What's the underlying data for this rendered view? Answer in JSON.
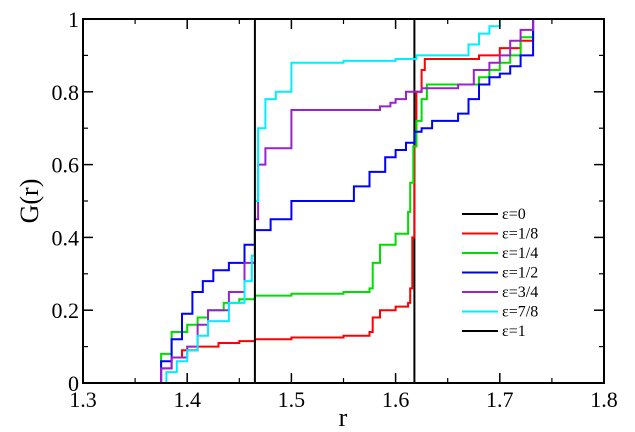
{
  "chart_data": {
    "type": "line",
    "title": "",
    "xlabel": "r",
    "ylabel": "G(r)",
    "xlim": [
      1.3,
      1.8
    ],
    "ylim": [
      0,
      1
    ],
    "x_ticks": [
      1.3,
      1.4,
      1.5,
      1.6,
      1.7,
      1.8
    ],
    "x_tick_labels": [
      "1.3",
      "1.4",
      "1.5",
      "1.6",
      "1.7",
      "1.8"
    ],
    "y_ticks": [
      0,
      0.2,
      0.4,
      0.6,
      0.8,
      1
    ],
    "y_tick_labels": [
      "0",
      "0.2",
      "0.4",
      "0.6",
      "0.8",
      "1"
    ],
    "grid": false,
    "legend_position": "bottom-right",
    "series": [
      {
        "name": "ε=0",
        "color": "#000000",
        "x": [
          1.3,
          1.618,
          1.618,
          1.8
        ],
        "y": [
          0,
          0,
          1,
          1
        ]
      },
      {
        "name": "ε=1/8",
        "color": "#ff0000",
        "x": [
          1.3,
          1.37,
          1.375,
          1.385,
          1.395,
          1.41,
          1.43,
          1.45,
          1.465,
          1.5,
          1.55,
          1.575,
          1.578,
          1.585,
          1.6,
          1.612,
          1.614,
          1.616,
          1.618,
          1.62,
          1.625,
          1.628,
          1.66,
          1.68,
          1.7,
          1.72,
          1.732,
          1.8
        ],
        "y": [
          0,
          0,
          0.04,
          0.07,
          0.09,
          0.1,
          0.11,
          0.115,
          0.12,
          0.125,
          0.13,
          0.14,
          0.18,
          0.2,
          0.21,
          0.22,
          0.26,
          0.4,
          0.65,
          0.8,
          0.86,
          0.89,
          0.89,
          0.9,
          0.92,
          0.94,
          1,
          1
        ]
      },
      {
        "name": "ε=1/4",
        "color": "#00dd00",
        "x": [
          1.3,
          1.365,
          1.375,
          1.385,
          1.4,
          1.41,
          1.42,
          1.435,
          1.45,
          1.465,
          1.5,
          1.55,
          1.575,
          1.578,
          1.585,
          1.6,
          1.612,
          1.614,
          1.617,
          1.62,
          1.625,
          1.63,
          1.66,
          1.68,
          1.69,
          1.7,
          1.71,
          1.72,
          1.732,
          1.8
        ],
        "y": [
          0,
          0,
          0.08,
          0.14,
          0.16,
          0.18,
          0.2,
          0.22,
          0.23,
          0.24,
          0.245,
          0.25,
          0.26,
          0.33,
          0.38,
          0.41,
          0.47,
          0.55,
          0.65,
          0.72,
          0.78,
          0.82,
          0.82,
          0.84,
          0.86,
          0.88,
          0.9,
          0.95,
          1,
          1
        ]
      },
      {
        "name": "ε=1/2",
        "color": "#0000ff",
        "x": [
          1.3,
          1.365,
          1.375,
          1.385,
          1.395,
          1.405,
          1.415,
          1.425,
          1.44,
          1.455,
          1.465,
          1.48,
          1.5,
          1.55,
          1.56,
          1.575,
          1.59,
          1.6,
          1.61,
          1.618,
          1.625,
          1.635,
          1.66,
          1.67,
          1.68,
          1.69,
          1.7,
          1.71,
          1.72,
          1.732,
          1.8
        ],
        "y": [
          0,
          0,
          0.06,
          0.12,
          0.19,
          0.25,
          0.28,
          0.31,
          0.33,
          0.38,
          0.42,
          0.45,
          0.5,
          0.5,
          0.54,
          0.58,
          0.62,
          0.64,
          0.66,
          0.69,
          0.7,
          0.72,
          0.74,
          0.78,
          0.82,
          0.84,
          0.85,
          0.87,
          0.9,
          1,
          1
        ]
      },
      {
        "name": "ε=3/4",
        "color": "#9922cc",
        "x": [
          1.3,
          1.37,
          1.375,
          1.385,
          1.4,
          1.41,
          1.42,
          1.44,
          1.455,
          1.465,
          1.468,
          1.475,
          1.5,
          1.5,
          1.575,
          1.585,
          1.595,
          1.6,
          1.61,
          1.62,
          1.625,
          1.66,
          1.675,
          1.69,
          1.7,
          1.71,
          1.72,
          1.732,
          1.8
        ],
        "y": [
          0,
          0,
          0.04,
          0.07,
          0.1,
          0.16,
          0.2,
          0.25,
          0.33,
          0.45,
          0.6,
          0.645,
          0.645,
          0.75,
          0.75,
          0.76,
          0.77,
          0.78,
          0.8,
          0.8,
          0.81,
          0.82,
          0.86,
          0.88,
          0.9,
          0.94,
          0.97,
          1,
          1
        ]
      },
      {
        "name": "ε=7/8",
        "color": "#00eeff",
        "x": [
          1.3,
          1.37,
          1.38,
          1.39,
          1.4,
          1.41,
          1.42,
          1.44,
          1.455,
          1.462,
          1.465,
          1.468,
          1.475,
          1.485,
          1.5,
          1.5,
          1.55,
          1.6,
          1.62,
          1.66,
          1.67,
          1.68,
          1.69,
          1.7,
          1.8
        ],
        "y": [
          0,
          0,
          0.03,
          0.06,
          0.09,
          0.13,
          0.17,
          0.22,
          0.28,
          0.35,
          0.5,
          0.7,
          0.78,
          0.8,
          0.8,
          0.88,
          0.885,
          0.89,
          0.9,
          0.9,
          0.93,
          0.96,
          0.98,
          1,
          1
        ]
      },
      {
        "name": "ε=1",
        "color": "#000000",
        "x": [
          1.3,
          1.465,
          1.465,
          1.8
        ],
        "y": [
          0,
          0,
          1,
          1
        ]
      }
    ]
  }
}
